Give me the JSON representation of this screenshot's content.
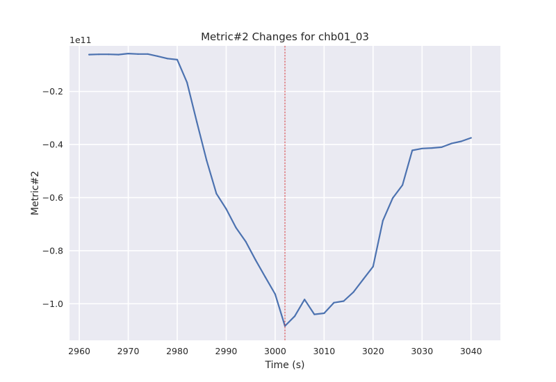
{
  "chart_data": {
    "type": "line",
    "title": "Metric#2 Changes for chb01_03",
    "xlabel": "Time (s)",
    "ylabel": "Metric#2",
    "y_offset_label": "1e11",
    "xlim": [
      2959.1,
      2743.0
    ],
    "ylim": [
      -1.138,
      -0.028
    ],
    "x_ticks": [
      2960,
      2970,
      2980,
      2990,
      3000,
      3010,
      3020,
      3030,
      3040
    ],
    "x_tick_labels": [
      "2960",
      "2970",
      "2980",
      "2990",
      "3000",
      "3010",
      "3020",
      "3030",
      "3040"
    ],
    "y_ticks": [
      -1.0,
      -0.8,
      -0.6,
      -0.4,
      -0.2
    ],
    "y_tick_labels": [
      "−1.0",
      "−0.8",
      "−0.6",
      "−0.4",
      "−0.2"
    ],
    "grid": true,
    "colors": {
      "line": "#4c72b0",
      "marker": "#d62728",
      "background": "#eaeaf2",
      "grid": "#ffffff"
    },
    "marker_x": 3002,
    "series": [
      {
        "name": "",
        "x": [
          2962,
          2964,
          2966,
          2968,
          2970,
          2972,
          2974,
          2976,
          2978,
          2980,
          2982,
          2984,
          2986,
          2988,
          2990,
          2992,
          2994,
          2996,
          2998,
          3000,
          3002,
          3004,
          3006,
          3008,
          3010,
          3012,
          3014,
          3016,
          3018,
          3020,
          3022,
          3024,
          3026,
          3028,
          3030,
          3032,
          3034,
          3036,
          3038,
          3040
        ],
        "y": [
          -0.061,
          -0.06,
          -0.06,
          -0.061,
          -0.057,
          -0.059,
          -0.059,
          -0.067,
          -0.076,
          -0.08,
          -0.166,
          -0.315,
          -0.46,
          -0.585,
          -0.643,
          -0.713,
          -0.766,
          -0.835,
          -0.9,
          -0.964,
          -1.084,
          -1.047,
          -0.984,
          -1.04,
          -1.036,
          -0.996,
          -0.99,
          -0.956,
          -0.908,
          -0.86,
          -0.687,
          -0.602,
          -0.553,
          -0.422,
          -0.415,
          -0.413,
          -0.41,
          -0.396,
          -0.388,
          -0.375
        ]
      }
    ]
  }
}
